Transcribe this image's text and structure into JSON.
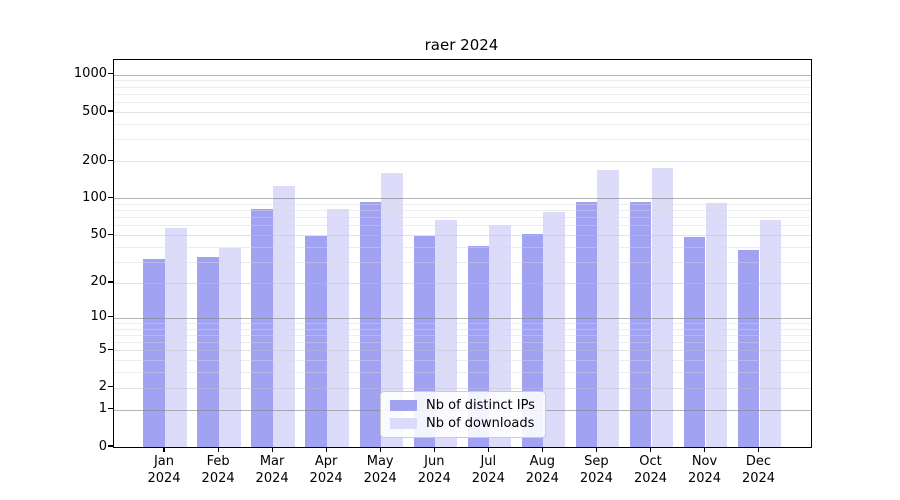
{
  "chart_data": {
    "type": "bar",
    "title": "raer 2024",
    "categories": [
      "Jan",
      "Feb",
      "Mar",
      "Apr",
      "May",
      "Jun",
      "Jul",
      "Aug",
      "Sep",
      "Oct",
      "Nov",
      "Dec"
    ],
    "year_label": "2024",
    "series": [
      {
        "name": "Nb of distinct IPs",
        "color": "#a2a2f2",
        "values": [
          32,
          33,
          82,
          49,
          93,
          49,
          41,
          51,
          93,
          93,
          48,
          38
        ]
      },
      {
        "name": "Nb of downloads",
        "color": "#dcdcfa",
        "values": [
          57,
          39,
          126,
          82,
          160,
          67,
          61,
          78,
          169,
          177,
          91,
          67
        ]
      }
    ],
    "y_axis": {
      "scale": "log10(value+1)",
      "ticks": [
        0,
        1,
        2,
        5,
        10,
        20,
        50,
        100,
        200,
        500,
        1000
      ],
      "top_value": 1300
    },
    "x_axis": {
      "tick_label_format": "month over year"
    },
    "grid": {
      "major": true,
      "minor": true
    },
    "legend_position": "inside-bottom-center",
    "colors": {
      "spine": "#000000",
      "background": "#ffffff"
    }
  }
}
